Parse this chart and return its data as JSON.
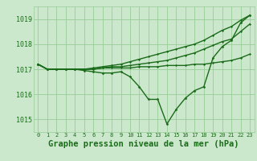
{
  "title": "Graphe pression niveau de la mer (hPa)",
  "xlabel_hours": [
    0,
    1,
    2,
    3,
    4,
    5,
    6,
    7,
    8,
    9,
    10,
    11,
    12,
    13,
    14,
    15,
    16,
    17,
    18,
    19,
    20,
    21,
    22,
    23
  ],
  "background_color": "#cce8cc",
  "plot_bg_color": "#cce8cc",
  "grid_color": "#99cc99",
  "line_color": "#1a6b1a",
  "ylim": [
    1014.5,
    1019.5
  ],
  "yticks": [
    1015,
    1016,
    1017,
    1018,
    1019
  ],
  "main_series": [
    1017.2,
    1017.0,
    1017.0,
    1017.0,
    1017.0,
    1016.95,
    1016.9,
    1016.85,
    1016.85,
    1016.9,
    1016.7,
    1016.3,
    1015.8,
    1015.8,
    1014.82,
    1015.4,
    1015.85,
    1016.15,
    1016.3,
    1017.45,
    1017.9,
    1018.15,
    1018.85,
    1019.15
  ],
  "flat_series": [
    [
      1017.2,
      1017.0,
      1017.0,
      1017.0,
      1017.0,
      1017.0,
      1017.0,
      1017.05,
      1017.05,
      1017.05,
      1017.05,
      1017.1,
      1017.1,
      1017.1,
      1017.15,
      1017.15,
      1017.15,
      1017.2,
      1017.2,
      1017.25,
      1017.3,
      1017.35,
      1017.45,
      1017.6
    ],
    [
      1017.2,
      1017.0,
      1017.0,
      1017.0,
      1017.0,
      1017.0,
      1017.0,
      1017.05,
      1017.1,
      1017.1,
      1017.15,
      1017.2,
      1017.25,
      1017.3,
      1017.35,
      1017.45,
      1017.55,
      1017.65,
      1017.8,
      1017.95,
      1018.1,
      1018.2,
      1018.5,
      1018.8
    ],
    [
      1017.2,
      1017.0,
      1017.0,
      1017.0,
      1017.0,
      1017.0,
      1017.05,
      1017.1,
      1017.15,
      1017.2,
      1017.3,
      1017.4,
      1017.5,
      1017.6,
      1017.7,
      1017.8,
      1017.9,
      1018.0,
      1018.15,
      1018.35,
      1018.55,
      1018.7,
      1018.95,
      1019.15
    ]
  ],
  "title_fontsize": 7.5,
  "tick_fontsize": 6,
  "marker_size": 2.5,
  "line_width": 1.0
}
